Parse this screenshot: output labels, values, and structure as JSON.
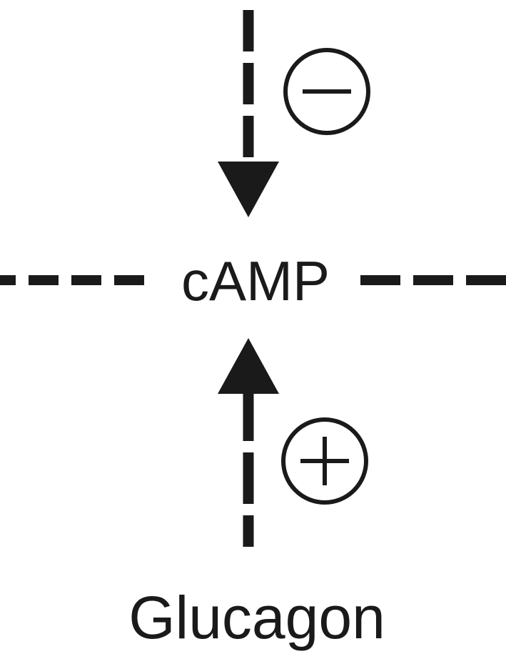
{
  "nodes": [
    {
      "label": "cAMP"
    },
    {
      "label": "Glucagon"
    }
  ]
}
